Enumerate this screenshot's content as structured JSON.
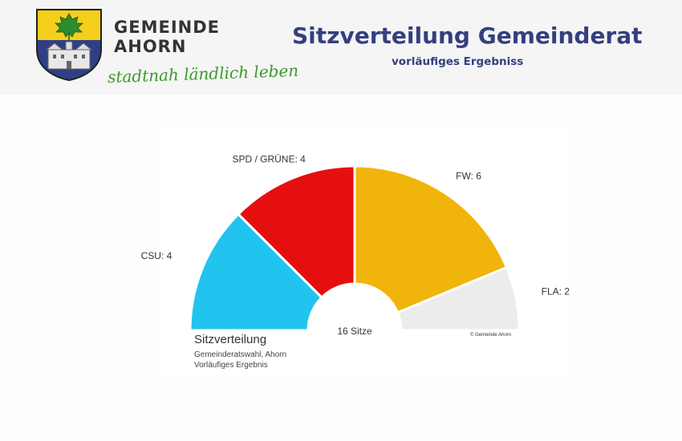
{
  "brand": {
    "line1": "GEMEINDE",
    "line2": "AHORN",
    "slogan": "stadtnah ländlich leben",
    "crest_icon": "coat-of-arms-maple-leaf-castle"
  },
  "header": {
    "title": "Sitzverteilung Gemeinderat",
    "subtitle": "vorläufiges Ergebniss"
  },
  "colors": {
    "title": "#34407f",
    "slogan": "#3a9a2a",
    "header_bg": "#f5f5f5"
  },
  "chart_data": {
    "type": "pie",
    "subtype": "semicircle-parliament",
    "title": "Sitzverteilung",
    "subtitle_lines": [
      "Gemeinderatswahl, Ahorn",
      "Vorläufiges Ergebnis"
    ],
    "center_label": "16 Sitze",
    "credit": "© Gemeinde Ahorn",
    "series": [
      {
        "name": "CSU",
        "value": 4,
        "label": "CSU: 4",
        "color": "#21c4ee"
      },
      {
        "name": "SPD / GRÜNE",
        "value": 4,
        "label": "SPD / GRÜNE: 4",
        "color": "#e60f0f"
      },
      {
        "name": "FW",
        "value": 6,
        "label": "FW: 6",
        "color": "#f1b40a"
      },
      {
        "name": "FLA",
        "value": 2,
        "label": "FLA: 2",
        "color": "#ececec"
      }
    ],
    "total": 16
  }
}
